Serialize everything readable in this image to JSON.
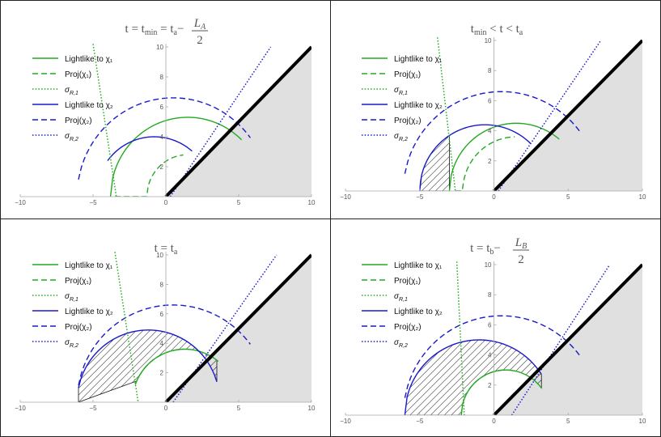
{
  "colors": {
    "green": "#22aa22",
    "blue": "#1a1acc",
    "region": "#e0e0e0",
    "axis": "#a8a8a8"
  },
  "legend": [
    {
      "label": "Lightlike to χ₁",
      "color": "green",
      "dash": "solid"
    },
    {
      "label": "Proj(χ₁)",
      "color": "green",
      "dash": "dashed"
    },
    {
      "label": "σ",
      "sub": "R,1",
      "color": "green",
      "dash": "dotted"
    },
    {
      "label": "Lightlike to χ₂",
      "color": "blue",
      "dash": "solid"
    },
    {
      "label": "Proj(χ₂)",
      "color": "blue",
      "dash": "dashed"
    },
    {
      "label": "σ",
      "sub": "R,2",
      "color": "blue",
      "dash": "dotted"
    }
  ],
  "chart_data": [
    {
      "type": "line",
      "title_parts": {
        "lhs": "t = t",
        "lhs_sub": "min",
        "mid": " = t",
        "mid_sub": "a",
        "minus": "−",
        "num": "L",
        "num_sub": "A",
        "den": "2"
      },
      "xlim": [
        -10,
        10
      ],
      "ylim": [
        0,
        10
      ],
      "xticks": [
        -10,
        -5,
        0,
        5,
        10
      ],
      "yticks": [
        2,
        4,
        6,
        8,
        10
      ],
      "xticklabels": [
        "−10",
        "−5",
        "0",
        "5",
        "10"
      ],
      "yticklabels": [
        "2",
        "4",
        "6",
        "8",
        "10"
      ],
      "curves": {
        "green_solid": {
          "cx": 1.5,
          "r": 5.3,
          "x_from": -3.8,
          "x_to": 5.2
        },
        "green_dashed": {
          "cx": 1.5,
          "r": 2.8,
          "x_from": -3.5,
          "x_to": 1.2,
          "y0_at": -3.5,
          "y_end": 1.5
        },
        "green_dotted": {
          "x1": -5.0,
          "y1": 10.2,
          "x2": -3.4,
          "y2": 0
        },
        "blue_solid": {
          "cx": -0.8,
          "r": 4.0,
          "x_from": -4.0,
          "x_to": 1.8
        },
        "blue_dashed": {
          "cx": 0.5,
          "r": 6.6,
          "x_from": -6.0,
          "x_to": 5.8
        },
        "blue_dotted": {
          "x1": 0.3,
          "y1": 0,
          "x2": 7.2,
          "y2": 10
        }
      },
      "hatch": null
    },
    {
      "type": "line",
      "title_parts": {
        "lhs": "t",
        "lhs_sub": "min",
        "mid": " < t < t",
        "mid_sub": "a"
      },
      "xlim": [
        -10,
        10
      ],
      "ylim": [
        0,
        10
      ],
      "xticks": [
        -10,
        -5,
        0,
        5,
        10
      ],
      "yticks": [
        2,
        4,
        6,
        8,
        10
      ],
      "xticklabels": [
        "−10",
        "−5",
        "0",
        "5",
        "10"
      ],
      "yticklabels": [
        "2",
        "4",
        "6",
        "8",
        "10"
      ],
      "curves": {
        "green_solid": {
          "cx": 1.5,
          "r": 4.5,
          "x_from": -3.0,
          "x_to": 4.4
        },
        "green_dashed": {
          "cx": 1.5,
          "r": 3.6,
          "x_from": -2.6,
          "x_to": 1.4
        },
        "green_dotted": {
          "x1": -3.8,
          "y1": 10.2,
          "x2": -2.6,
          "y2": 0
        },
        "blue_solid": {
          "cx": -0.6,
          "r": 4.4,
          "x_from": -5.0,
          "x_to": 2.5
        },
        "blue_dashed": {
          "cx": 0.5,
          "r": 6.6,
          "x_from": -6.0,
          "x_to": 5.8
        },
        "blue_dotted": {
          "x1": 0.3,
          "y1": 0,
          "x2": 7.2,
          "y2": 10
        }
      },
      "hatch": "left"
    },
    {
      "type": "line",
      "title_parts": {
        "lhs": "t = t",
        "lhs_sub": "a"
      },
      "xlim": [
        -10,
        10
      ],
      "ylim": [
        0,
        10
      ],
      "xticks": [
        -10,
        -5,
        0,
        5,
        10
      ],
      "yticks": [
        2,
        4,
        6,
        8,
        10
      ],
      "xticklabels": [
        "−10",
        "−5",
        "0",
        "5",
        "10"
      ],
      "yticklabels": [
        "2",
        "4",
        "6",
        "8",
        "10"
      ],
      "curves": {
        "green_solid": {
          "cx": 1.3,
          "r": 3.6,
          "x_from": -2.0,
          "x_to": 3.6
        },
        "green_dashed": {
          "cx": 1.3,
          "r": 3.6,
          "x_from": -2.1,
          "x_to": 1.2
        },
        "green_dotted": {
          "x1": -3.5,
          "y1": 10.2,
          "x2": -1.9,
          "y2": 0
        },
        "blue_solid": {
          "cx": -1.2,
          "r": 4.9,
          "x_from": -6.0,
          "x_to": 3.5
        },
        "blue_dashed": {
          "cx": 0.5,
          "r": 6.6,
          "x_from": -6.0,
          "x_to": 5.8
        },
        "blue_dotted": {
          "x1": 0.5,
          "y1": 0,
          "x2": 7.6,
          "y2": 10
        }
      },
      "hatch": "full"
    },
    {
      "type": "line",
      "title_parts": {
        "lhs": "t = t",
        "lhs_sub": "b",
        "minus": "−",
        "num": "L",
        "num_sub": "B",
        "den": "2"
      },
      "xlim": [
        -10,
        10
      ],
      "ylim": [
        0,
        10
      ],
      "xticks": [
        -10,
        -5,
        0,
        5,
        10
      ],
      "yticks": [
        2,
        4,
        6,
        8,
        10
      ],
      "xticklabels": [
        "−10",
        "−5",
        "0",
        "5",
        "10"
      ],
      "yticklabels": [
        "2",
        "4",
        "6",
        "8",
        "10"
      ],
      "curves": {
        "green_solid": {
          "cx": 0.8,
          "r": 3.0,
          "x_from": -2.2,
          "x_to": 3.2
        },
        "green_dashed": {
          "cx": 0.8,
          "r": 3.0,
          "x_from": -2.2,
          "x_to": 1.1
        },
        "green_dotted": {
          "x1": -2.5,
          "y1": 10.2,
          "x2": -2.0,
          "y2": 0
        },
        "blue_solid": {
          "cx": -1.0,
          "r": 5.0,
          "x_from": -6.0,
          "x_to": 3.2
        },
        "blue_dashed": {
          "cx": 0.5,
          "r": 6.6,
          "x_from": -6.0,
          "x_to": 5.8
        },
        "blue_dotted": {
          "x1": 1.2,
          "y1": 0,
          "x2": 7.8,
          "y2": 10
        }
      },
      "hatch": "full"
    }
  ]
}
